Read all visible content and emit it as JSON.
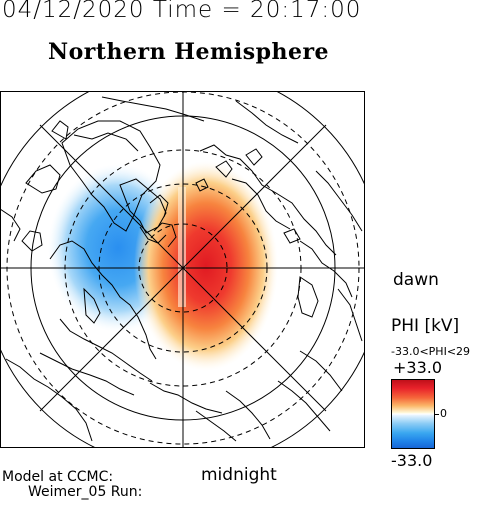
{
  "header": {
    "date_time": "04/12/2020 Time = 20:17:00",
    "hemisphere_title": "Northern Hemisphere"
  },
  "map": {
    "dawn_label": "dawn",
    "midnight_label": "midnight",
    "positive_cell_color": "#e8222a",
    "negative_cell_color": "#1f83e8"
  },
  "colorbar": {
    "title": "PHI [kV]",
    "range_text": "-33.0<PHI<29",
    "max_label": "+33.0",
    "zero_label": "0",
    "min_label": "-33.0"
  },
  "footer": {
    "model_label": "Model at CCMC:",
    "run_label": "Weimer_05 Run:"
  }
}
